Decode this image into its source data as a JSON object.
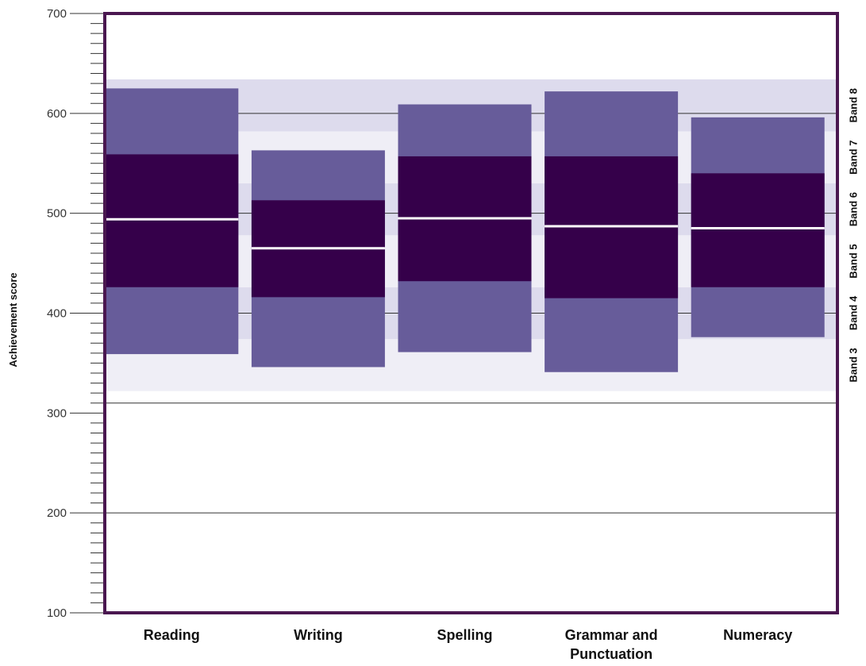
{
  "chart_data": {
    "type": "box",
    "y_label": "Achievement score",
    "ylim": [
      100,
      700
    ],
    "y_ticks": [
      100,
      200,
      300,
      400,
      500,
      600,
      700
    ],
    "y_minor_step": 10,
    "gridlines": [
      200,
      310,
      400,
      500,
      600
    ],
    "categories": [
      "Reading",
      "Writing",
      "Spelling",
      "Grammar and Punctuation",
      "Numeracy"
    ],
    "category_lines": [
      [
        "Reading"
      ],
      [
        "Writing"
      ],
      [
        "Spelling"
      ],
      [
        "Grammar and",
        "Punctuation"
      ],
      [
        "Numeracy"
      ]
    ],
    "series": [
      {
        "low": 359,
        "q1": 426,
        "median": 494,
        "q3": 559,
        "high": 625
      },
      {
        "low": 346,
        "q1": 416,
        "median": 465,
        "q3": 513,
        "high": 563
      },
      {
        "low": 361,
        "q1": 432,
        "median": 495,
        "q3": 557,
        "high": 609
      },
      {
        "low": 341,
        "q1": 415,
        "median": 487,
        "q3": 557,
        "high": 622
      },
      {
        "low": 376,
        "q1": 426,
        "median": 485,
        "q3": 540,
        "high": 596
      }
    ],
    "bands": [
      {
        "label": "Band 3",
        "from": 322,
        "to": 374
      },
      {
        "label": "Band 4",
        "from": 374,
        "to": 426
      },
      {
        "label": "Band 5",
        "from": 426,
        "to": 478
      },
      {
        "label": "Band 6",
        "from": 478,
        "to": 530
      },
      {
        "label": "Band 7",
        "from": 530,
        "to": 582
      },
      {
        "label": "Band 8",
        "from": 582,
        "to": 634
      }
    ],
    "colors": {
      "frame": "#4a1750",
      "inner_box": "#35004a",
      "outer_box": "#675c9a",
      "median": "#ffffff",
      "band_dark": "#dddbed",
      "band_light": "#efeef6",
      "gridline": "#333333"
    }
  }
}
